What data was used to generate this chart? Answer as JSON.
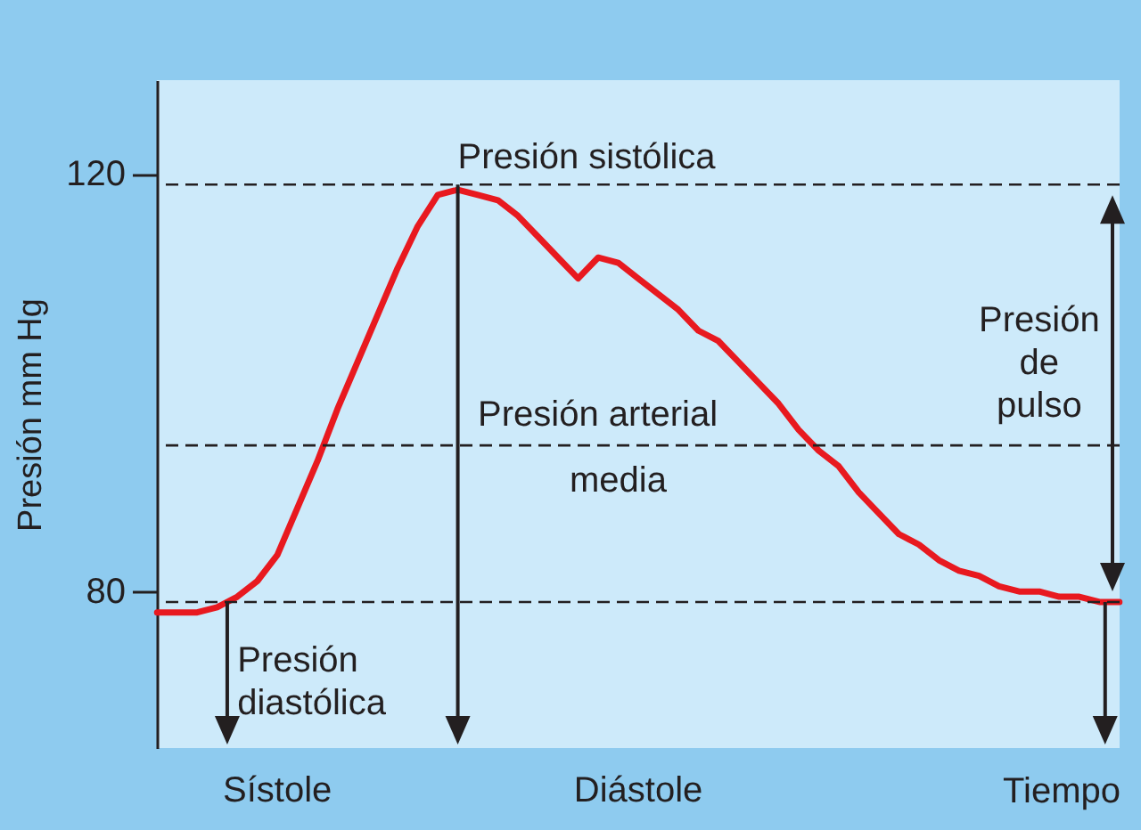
{
  "chart_data": {
    "type": "line",
    "xlabel": "Tiempo",
    "ylabel": "Presión mm Hg",
    "categories": [
      null,
      null,
      null,
      null,
      null,
      null,
      null,
      null,
      null,
      null,
      null,
      null,
      null,
      null,
      null,
      null,
      null,
      null,
      null,
      null,
      null,
      null,
      null,
      null,
      null,
      null,
      null,
      null,
      null,
      null,
      null,
      null,
      null,
      null,
      null,
      null,
      null,
      null,
      null,
      null,
      null,
      null,
      null,
      null,
      null,
      null,
      null,
      null,
      null
    ],
    "series": [
      {
        "color": "#e8191f",
        "values": [
          78,
          78,
          78,
          78.5,
          79.5,
          81,
          83.5,
          88,
          92.5,
          97.5,
          102,
          106.5,
          111,
          115,
          118,
          118.5,
          118,
          117.5,
          116,
          114,
          112,
          110,
          112,
          111.5,
          110,
          108.5,
          107,
          105,
          104,
          102,
          100,
          98,
          95.5,
          93.5,
          92,
          89.5,
          87.5,
          85.5,
          84.5,
          83,
          82,
          81.5,
          80.5,
          80,
          80,
          79.5,
          79.5,
          79,
          79
        ]
      }
    ],
    "ylim": [
      65,
      129
    ],
    "yticks": [
      80,
      120
    ],
    "tick_labels": "y",
    "grid": false,
    "line_style": "solid",
    "ref_lines": [
      {
        "axis": "y",
        "value": 119,
        "label": "Presión sistólica",
        "line_style": "dashed",
        "color": "#231f20"
      },
      {
        "axis": "y",
        "value": 94,
        "label": "Presión arterial media",
        "line_style": "dashed",
        "color": "#231f20"
      },
      {
        "axis": "y",
        "value": 79,
        "label": "Presión diastólica",
        "line_style": "dashed",
        "color": "#231f20"
      }
    ],
    "annotations": [
      "Sístole",
      "Diástole",
      "Presión de pulso"
    ]
  }
}
